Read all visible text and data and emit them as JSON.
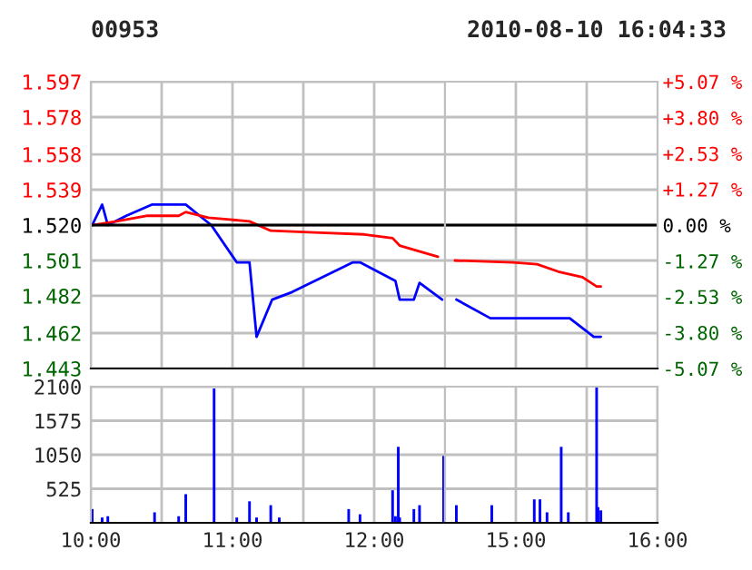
{
  "chart_data": [
    {
      "type": "line",
      "title": "00953",
      "series": [
        {
          "color": "#0000ff",
          "x": [
            10.01,
            10.08,
            10.12,
            10.25,
            10.43,
            10.67,
            10.85,
            11.03,
            11.12,
            11.17,
            11.28,
            11.42,
            11.85,
            11.9,
            12.15,
            12.18,
            12.28,
            12.32,
            12.48
          ],
          "values": [
            1.52,
            1.531,
            1.52,
            1.525,
            1.531,
            1.531,
            1.52,
            1.5,
            1.5,
            1.46,
            1.48,
            1.484,
            1.5,
            1.5,
            1.49,
            1.48,
            1.48,
            1.489,
            1.48
          ]
        },
        {
          "color": "#ff0000",
          "x": [
            10.01,
            10.18,
            10.4,
            10.62,
            10.67,
            10.83,
            11.12,
            11.27,
            11.58,
            11.93,
            12.13,
            12.18,
            12.45
          ],
          "values": [
            1.52,
            1.522,
            1.525,
            1.525,
            1.527,
            1.524,
            1.522,
            1.517,
            1.516,
            1.515,
            1.513,
            1.509,
            1.503
          ]
        }
      ],
      "xlim": [
        10,
        12.5
      ],
      "xticks": [
        {
          "value": 10,
          "label": null
        },
        {
          "value": 10.5,
          "label": null
        },
        {
          "value": 11,
          "label": null
        },
        {
          "value": 11.5,
          "label": null
        },
        {
          "value": 12,
          "label": null
        }
      ],
      "ylim": [
        1.443,
        1.597
      ],
      "yticks": [
        1.443,
        1.462,
        1.482,
        1.501,
        {
          "value": 1.52,
          "label": "1.520"
        },
        1.539,
        1.558,
        1.578,
        1.597
      ],
      "ref_lines": [
        {
          "axis": "y",
          "value": 1.52,
          "color": "#000000"
        }
      ],
      "grid": true,
      "tick_labels": "y"
    },
    {
      "type": "line",
      "title": "2010-08-10 16:04:33",
      "series": [
        {
          "color": "#0000ff",
          "x": [
            14.58,
            14.82,
            15.38,
            15.55,
            15.6
          ],
          "values": [
            1.48,
            1.47,
            1.47,
            1.46,
            1.46
          ]
        },
        {
          "color": "#ff0000",
          "x": [
            14.57,
            14.98,
            15.15,
            15.3,
            15.47,
            15.57,
            15.6
          ],
          "values": [
            1.501,
            1.5,
            1.499,
            1.495,
            1.492,
            1.487,
            1.487
          ]
        }
      ],
      "xlim": [
        14.5,
        16
      ],
      "xticks": [
        {
          "value": 15,
          "label": null
        },
        {
          "value": 15.5,
          "label": null
        }
      ],
      "ylim": [
        1.443,
        1.597
      ],
      "yticks": [
        {
          "value": 1.462,
          "label": null
        },
        {
          "value": 1.482,
          "label": null
        },
        {
          "value": 1.501,
          "label": null
        },
        {
          "value": 1.52,
          "label": null
        },
        {
          "value": 1.539,
          "label": null
        },
        {
          "value": 1.558,
          "label": null
        },
        {
          "value": 1.578,
          "label": null
        }
      ],
      "y2lim": [
        -5.07,
        5.07
      ],
      "y2ticks": [
        {
          "value": -5.07,
          "label": "-5.07 %"
        },
        {
          "value": -3.8,
          "label": "-3.80 %"
        },
        {
          "value": -2.53,
          "label": "-2.53 %"
        },
        {
          "value": -1.27,
          "label": "-1.27 %"
        },
        {
          "value": 0,
          "label": "0.00 %"
        },
        {
          "value": 1.27,
          "label": "+1.27 %"
        },
        {
          "value": 2.53,
          "label": "+2.53 %"
        },
        {
          "value": 3.8,
          "label": "+3.80 %"
        },
        {
          "value": 5.07,
          "label": "+5.07 %"
        }
      ],
      "ref_lines": [
        {
          "axis": "y",
          "value": 1.52,
          "color": "#000000"
        }
      ],
      "grid": true,
      "tick_labels": false
    },
    {
      "type": "bar",
      "color": "#0000ff",
      "x": [
        10.01,
        10.08,
        10.12,
        10.45,
        10.62,
        10.67,
        10.87,
        11.03,
        11.12,
        11.17,
        11.27,
        11.33,
        11.82,
        11.9,
        12.13,
        12.15,
        12.17,
        12.18,
        12.28,
        12.32,
        12.49
      ],
      "values": [
        200,
        70,
        90,
        150,
        90,
        430,
        2060,
        70,
        320,
        70,
        260,
        70,
        200,
        120,
        490,
        90,
        1160,
        70,
        200,
        260,
        1020
      ],
      "xlim": [
        10,
        12.5
      ],
      "xticks": [
        {
          "value": 10,
          "label": "10:00"
        },
        {
          "value": 10.5,
          "label": null
        },
        {
          "value": 11,
          "label": "11:00"
        },
        {
          "value": 11.5,
          "label": null
        },
        {
          "value": 12,
          "label": "12:00"
        }
      ],
      "ylim": [
        0,
        2100
      ],
      "yticks": [
        525,
        1050,
        1575,
        2100
      ],
      "grid": true
    },
    {
      "type": "bar",
      "color": "#0000ff",
      "x": [
        14.58,
        14.83,
        15.13,
        15.17,
        15.22,
        15.32,
        15.37,
        15.57,
        15.58,
        15.6
      ],
      "values": [
        260,
        260,
        350,
        350,
        150,
        1160,
        150,
        2080,
        230,
        180
      ],
      "xlim": [
        14.5,
        16
      ],
      "xticks": [
        {
          "value": 15,
          "label": "15:00"
        },
        {
          "value": 15.5,
          "label": null
        },
        {
          "value": 16,
          "label": "16:00"
        }
      ],
      "ylim": [
        0,
        2100
      ],
      "yticks": [
        {
          "value": 525,
          "label": null
        },
        {
          "value": 1050,
          "label": null
        },
        {
          "value": 1575,
          "label": null
        }
      ],
      "grid": true,
      "tick_labels": "x"
    }
  ]
}
